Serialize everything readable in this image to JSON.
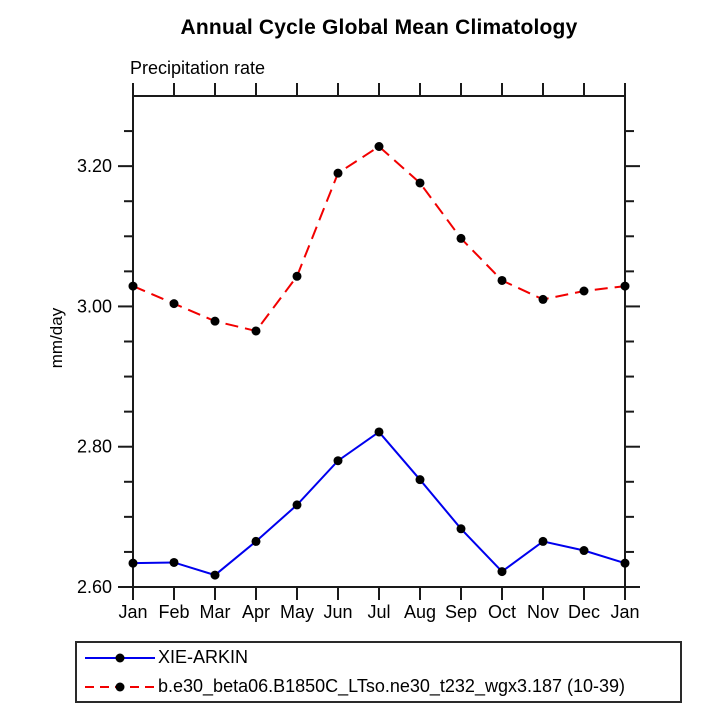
{
  "chart_data": {
    "type": "line",
    "title": "Annual Cycle Global Mean Climatology",
    "subtitle": "Precipitation rate",
    "ylabel": "mm/day",
    "xlabel": "",
    "x_categories": [
      "Jan",
      "Feb",
      "Mar",
      "Apr",
      "May",
      "Jun",
      "Jul",
      "Aug",
      "Sep",
      "Oct",
      "Nov",
      "Dec",
      "Jan"
    ],
    "ylim": [
      2.6,
      3.3
    ],
    "ytick_major": [
      2.6,
      2.8,
      3.0,
      3.2
    ],
    "ytick_labels": [
      "2.60",
      "2.80",
      "3.00",
      "3.20"
    ],
    "ytick_minor_step": 0.05,
    "grid": false,
    "legend_position": "bottom-left-box",
    "axis_color": "#1a1a1a",
    "marker_color": "#000000",
    "series": [
      {
        "name": "XIE-ARKIN",
        "color": "#0000ee",
        "style": "solid",
        "marker": "black-dot",
        "values": [
          2.634,
          2.635,
          2.617,
          2.665,
          2.717,
          2.78,
          2.821,
          2.753,
          2.683,
          2.622,
          2.665,
          2.652,
          2.634
        ]
      },
      {
        "name": "b.e30_beta06.B1850C_LTso.ne30_t232_wgx3.187 (10-39)",
        "color": "#f20000",
        "style": "dashed",
        "marker": "black-dot",
        "values": [
          3.029,
          3.004,
          2.979,
          2.965,
          3.043,
          3.19,
          3.228,
          3.176,
          3.097,
          3.037,
          3.01,
          3.022,
          3.029
        ]
      }
    ]
  }
}
